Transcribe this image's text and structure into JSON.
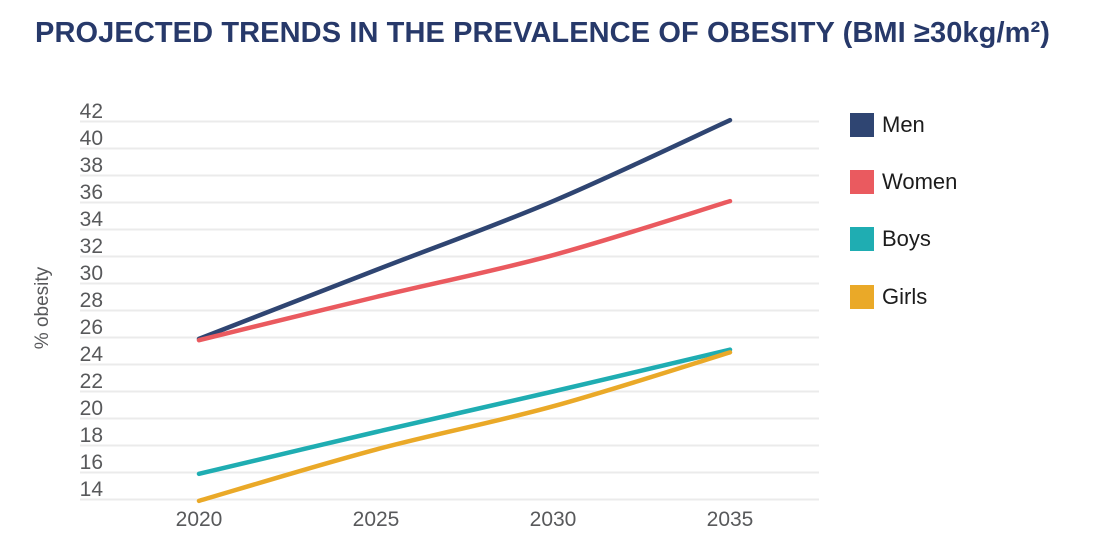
{
  "title": {
    "text": "PROJECTED TRENDS IN THE PREVALENCE OF OBESITY (BMI ≥30kg/m²)",
    "color": "#27396A"
  },
  "chart_data": {
    "type": "line",
    "title": "PROJECTED TRENDS IN THE PREVALENCE OF OBESITY (BMI ≥30kg/m²)",
    "categories": [
      "2020",
      "2025",
      "2030",
      "2035"
    ],
    "series": [
      {
        "name": "Men",
        "color": "#2F4572",
        "values": [
          25.9,
          31.0,
          36.1,
          42.1
        ]
      },
      {
        "name": "Women",
        "color": "#EA5A5F",
        "values": [
          25.8,
          29.0,
          32.1,
          36.1
        ]
      },
      {
        "name": "Boys",
        "color": "#1FADB2",
        "values": [
          15.9,
          19.0,
          22.0,
          25.1
        ]
      },
      {
        "name": "Girls",
        "color": "#EAA928",
        "values": [
          13.9,
          17.7,
          20.9,
          24.9
        ]
      }
    ],
    "xlabel": "",
    "ylabel": "% obesity",
    "ylim": [
      14,
      42
    ],
    "ytick_step": 2,
    "yticks": [
      14,
      16,
      18,
      20,
      22,
      24,
      26,
      28,
      30,
      32,
      34,
      36,
      38,
      40,
      42
    ],
    "grid": "horizontal",
    "grid_color": "#EBEBEB",
    "axis_text_color": "#58595B",
    "legend_position": "right",
    "line_width": 4.5
  }
}
